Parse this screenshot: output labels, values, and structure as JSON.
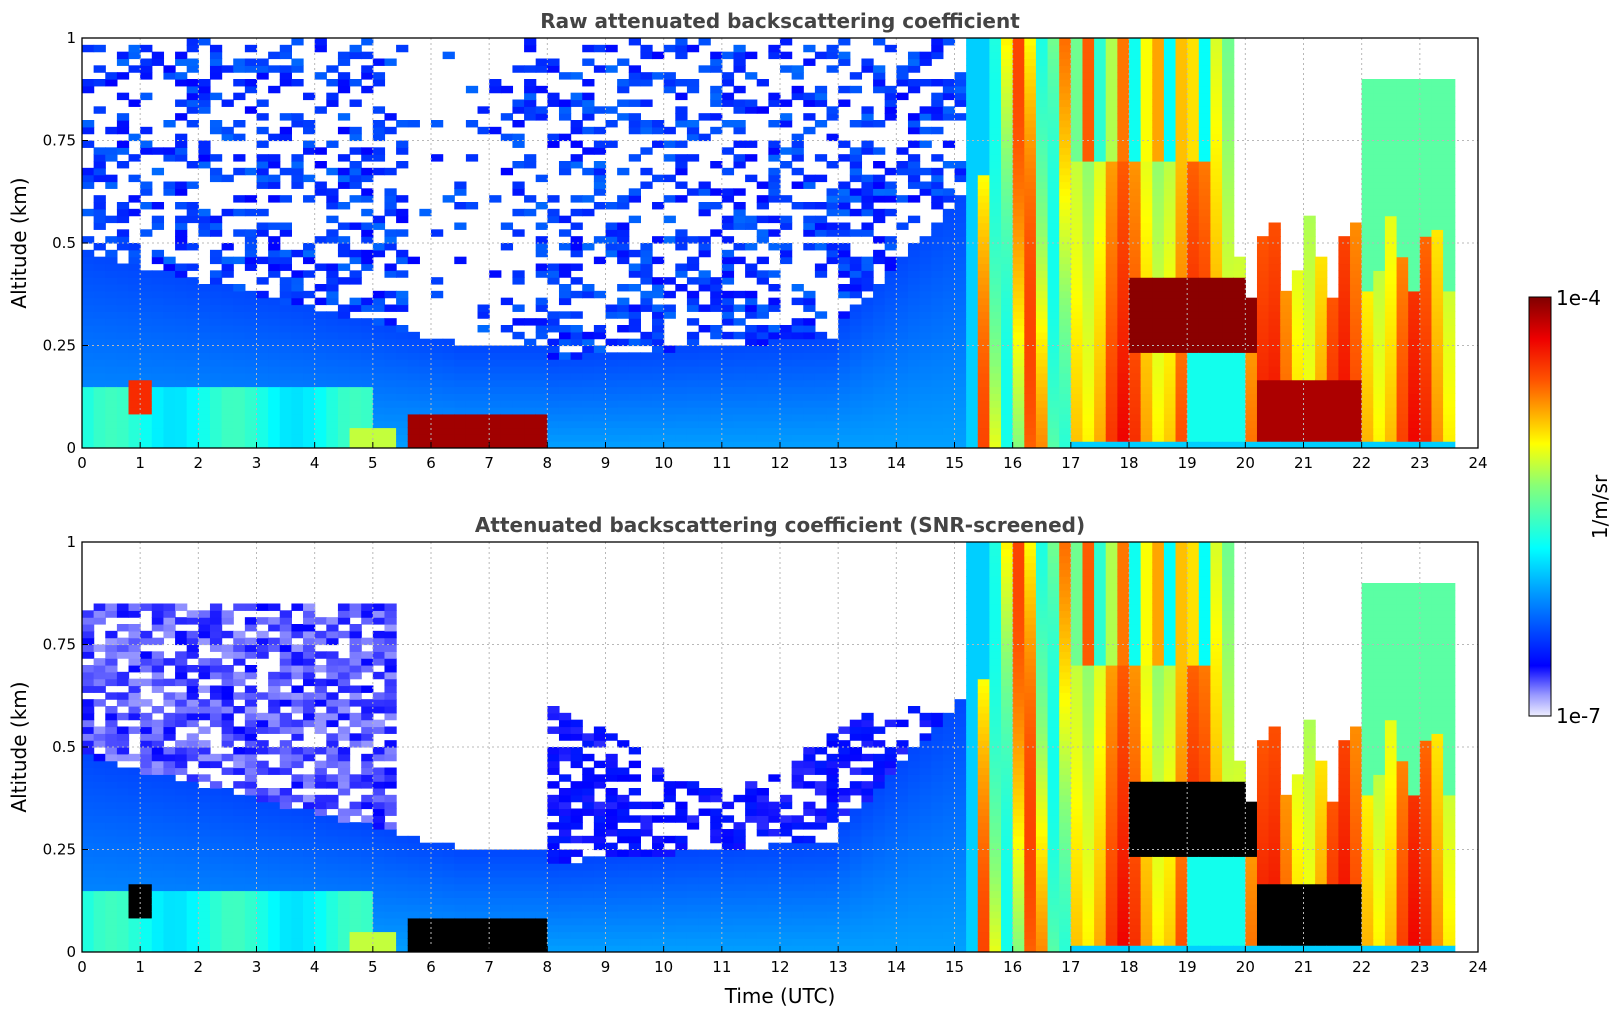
{
  "chart_data": [
    {
      "type": "heatmap",
      "title": "Raw attenuated backscattering coefficient",
      "xlabel": "",
      "ylabel": "Altitude (km)",
      "xlim": [
        0,
        24
      ],
      "ylim": [
        0,
        1
      ],
      "xticks": [
        "0",
        "1",
        "2",
        "3",
        "4",
        "5",
        "6",
        "7",
        "8",
        "9",
        "10",
        "11",
        "12",
        "13",
        "14",
        "15",
        "16",
        "17",
        "18",
        "19",
        "20",
        "21",
        "22",
        "23",
        "24"
      ],
      "yticks": [
        "0",
        "0.25",
        "0.5",
        "0.75",
        "1"
      ],
      "grid": true,
      "regions": [
        {
          "feature": "noisy aerosol layer",
          "x": [
            0,
            15.3
          ],
          "y": [
            0.2,
            1.0
          ],
          "level": 0.2,
          "sparse": true
        },
        {
          "feature": "boundary layer aerosol",
          "x": [
            0,
            15.5
          ],
          "y": [
            0,
            0.45
          ],
          "level": 0.3
        },
        {
          "feature": "near-surface haze",
          "x": [
            0,
            4.8
          ],
          "y": [
            0,
            0.15
          ],
          "level": 0.5
        },
        {
          "feature": "low dense layer",
          "x": [
            5.5,
            8.0
          ],
          "y": [
            0,
            0.09
          ],
          "level": 0.95
        },
        {
          "feature": "clear gap",
          "x": [
            5.7,
            6.8
          ],
          "y": [
            0.25,
            1.0
          ],
          "level": 0.0
        },
        {
          "feature": "precipitation / cloud",
          "x": [
            15.3,
            17.0
          ],
          "y": [
            0,
            1.0
          ],
          "level": 0.75
        },
        {
          "feature": "cloud band",
          "x": [
            17.0,
            20.0
          ],
          "y": [
            0,
            1.0
          ],
          "level": 0.8
        },
        {
          "feature": "cloud base",
          "x": [
            18.0,
            20.2
          ],
          "y": [
            0.25,
            0.4
          ],
          "level": 0.98
        },
        {
          "feature": "low cloud",
          "x": [
            20.1,
            23.6
          ],
          "y": [
            0,
            0.45
          ],
          "level": 0.85
        },
        {
          "feature": "no data",
          "x": [
            23.7,
            24.0
          ],
          "y": [
            0,
            1.0
          ],
          "level": null
        }
      ]
    },
    {
      "type": "heatmap",
      "title": "Attenuated backscattering coefficient (SNR-screened)",
      "xlabel": "Time (UTC)",
      "ylabel": "Altitude (km)",
      "xlim": [
        0,
        24
      ],
      "ylim": [
        0,
        1
      ],
      "xticks": [
        "0",
        "1",
        "2",
        "3",
        "4",
        "5",
        "6",
        "7",
        "8",
        "9",
        "10",
        "11",
        "12",
        "13",
        "14",
        "15",
        "16",
        "17",
        "18",
        "19",
        "20",
        "21",
        "22",
        "23",
        "24"
      ],
      "yticks": [
        "0",
        "0.25",
        "0.5",
        "0.75",
        "1"
      ],
      "grid": true,
      "regions": [
        {
          "feature": "screened aerosol",
          "x": [
            0,
            5.5
          ],
          "y": [
            0.2,
            0.85
          ],
          "level": 0.1
        },
        {
          "feature": "boundary layer aerosol",
          "x": [
            0,
            15.5
          ],
          "y": [
            0,
            0.45
          ],
          "level": 0.3
        },
        {
          "feature": "low dense layer (saturated)",
          "x": [
            5.5,
            8.0
          ],
          "y": [
            0,
            0.09
          ],
          "level": "saturated"
        },
        {
          "feature": "precipitation / cloud",
          "x": [
            15.3,
            17.0
          ],
          "y": [
            0,
            1.0
          ],
          "level": 0.75
        },
        {
          "feature": "cloud base (saturated)",
          "x": [
            18.0,
            20.2
          ],
          "y": [
            0.25,
            0.4
          ],
          "level": "saturated"
        },
        {
          "feature": "low cloud (saturated)",
          "x": [
            20.1,
            22.0
          ],
          "y": [
            0,
            0.17
          ],
          "level": "saturated"
        }
      ]
    }
  ],
  "colorbar": {
    "label": "1/m/sr",
    "min_label": "1e-7",
    "max_label": "1e-4",
    "colormap": "jet"
  }
}
